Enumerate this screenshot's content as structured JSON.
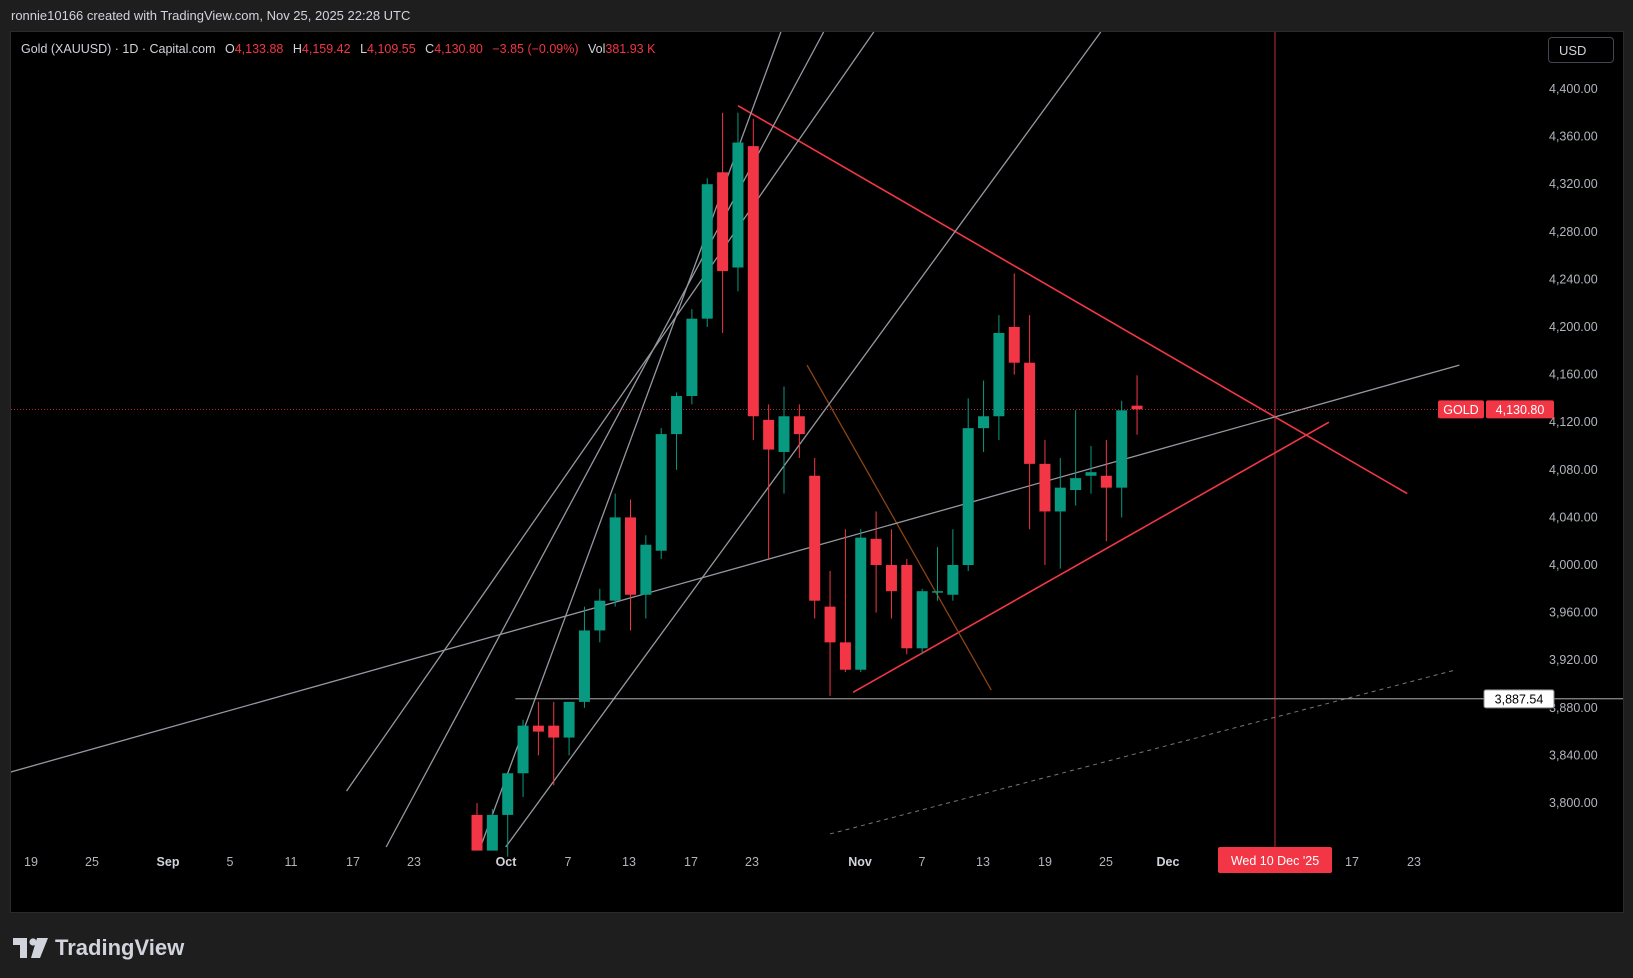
{
  "header": {
    "attribution": "ronnie10166 created with TradingView.com, Nov 25, 2025 22:28 UTC"
  },
  "legend": {
    "symbol": "Gold (XAUUSD) · 1D · Capital.com",
    "open_label": "O",
    "open": "4,133.88",
    "high_label": "H",
    "high": "4,159.42",
    "low_label": "L",
    "low": "4,109.55",
    "close_label": "C",
    "close": "4,130.80",
    "change": "−3.85 (−0.09%)",
    "vol_label": "Vol",
    "vol": "381.93 K"
  },
  "currency_button": "USD",
  "footer": {
    "brand": "TradingView"
  },
  "colors": {
    "up": "#089981",
    "down": "#f23645",
    "gray_line": "#9598a1",
    "red_line": "#f23645"
  },
  "chart_data": {
    "type": "candlestick",
    "y_ticks": [
      "4,400.00",
      "4,360.00",
      "4,320.00",
      "4,280.00",
      "4,240.00",
      "4,200.00",
      "4,160.00",
      "4,120.00",
      "4,080.00",
      "4,040.00",
      "4,000.00",
      "3,960.00",
      "3,920.00",
      "3,880.00",
      "3,840.00",
      "3,800.00"
    ],
    "x_ticks": [
      "19",
      "25",
      "Sep",
      "5",
      "11",
      "17",
      "23",
      "Oct",
      "7",
      "13",
      "17",
      "23",
      "Nov",
      "7",
      "13",
      "19",
      "25",
      "Dec",
      "17",
      "23"
    ],
    "x_bold": [
      "Sep",
      "Oct",
      "Nov",
      "Dec"
    ],
    "current_price_symbol": "GOLD",
    "current_price": "4,130.80",
    "horizontal_level": "3,887.54",
    "crosshair_date": "Wed 10 Dec '25",
    "candles": [
      {
        "o": 3790,
        "h": 3800,
        "l": 3760,
        "c": 3760
      },
      {
        "o": 3760,
        "h": 3795,
        "l": 3760,
        "c": 3790
      },
      {
        "o": 3790,
        "h": 3825,
        "l": 3755,
        "c": 3825
      },
      {
        "o": 3825,
        "h": 3870,
        "l": 3805,
        "c": 3865
      },
      {
        "o": 3865,
        "h": 3885,
        "l": 3840,
        "c": 3860
      },
      {
        "o": 3865,
        "h": 3885,
        "l": 3815,
        "c": 3855
      },
      {
        "o": 3855,
        "h": 3880,
        "l": 3840,
        "c": 3885
      },
      {
        "o": 3885,
        "h": 3965,
        "l": 3880,
        "c": 3945
      },
      {
        "o": 3945,
        "h": 3980,
        "l": 3935,
        "c": 3970
      },
      {
        "o": 3970,
        "h": 4060,
        "l": 3965,
        "c": 4040
      },
      {
        "o": 4040,
        "h": 4055,
        "l": 3945,
        "c": 3975
      },
      {
        "o": 3975,
        "h": 4025,
        "l": 3955,
        "c": 4017
      },
      {
        "o": 4012,
        "h": 4115,
        "l": 4005,
        "c": 4110
      },
      {
        "o": 4110,
        "h": 4145,
        "l": 4080,
        "c": 4142
      },
      {
        "o": 4142,
        "h": 4215,
        "l": 4135,
        "c": 4207
      },
      {
        "o": 4207,
        "h": 4325,
        "l": 4200,
        "c": 4320
      },
      {
        "o": 4330,
        "h": 4380,
        "l": 4195,
        "c": 4247
      },
      {
        "o": 4250,
        "h": 4380,
        "l": 4230,
        "c": 4355
      },
      {
        "o": 4352,
        "h": 4375,
        "l": 4105,
        "c": 4125
      },
      {
        "o": 4122,
        "h": 4135,
        "l": 4005,
        "c": 4097
      },
      {
        "o": 4095,
        "h": 4150,
        "l": 4060,
        "c": 4125
      },
      {
        "o": 4125,
        "h": 4135,
        "l": 4090,
        "c": 4110
      },
      {
        "o": 4075,
        "h": 4090,
        "l": 3955,
        "c": 3970
      },
      {
        "o": 3965,
        "h": 3995,
        "l": 3890,
        "c": 3935
      },
      {
        "o": 3935,
        "h": 4030,
        "l": 3910,
        "c": 3912
      },
      {
        "o": 3912,
        "h": 4030,
        "l": 3910,
        "c": 4023
      },
      {
        "o": 4022,
        "h": 4045,
        "l": 3960,
        "c": 4000
      },
      {
        "o": 4000,
        "h": 4030,
        "l": 3955,
        "c": 3978
      },
      {
        "o": 4000,
        "h": 4005,
        "l": 3925,
        "c": 3930
      },
      {
        "o": 3930,
        "h": 3980,
        "l": 3925,
        "c": 3978
      },
      {
        "o": 3978,
        "h": 4015,
        "l": 3970,
        "c": 3978
      },
      {
        "o": 3975,
        "h": 4030,
        "l": 3970,
        "c": 4000
      },
      {
        "o": 4000,
        "h": 4140,
        "l": 3995,
        "c": 4115
      },
      {
        "o": 4115,
        "h": 4155,
        "l": 4095,
        "c": 4125
      },
      {
        "o": 4125,
        "h": 4210,
        "l": 4105,
        "c": 4195
      },
      {
        "o": 4200,
        "h": 4245,
        "l": 4160,
        "c": 4170
      },
      {
        "o": 4170,
        "h": 4210,
        "l": 4030,
        "c": 4085
      },
      {
        "o": 4085,
        "h": 4105,
        "l": 4000,
        "c": 4045
      },
      {
        "o": 4045,
        "h": 4090,
        "l": 3997,
        "c": 4065
      },
      {
        "o": 4063,
        "h": 4130,
        "l": 4050,
        "c": 4073
      },
      {
        "o": 4075,
        "h": 4100,
        "l": 4060,
        "c": 4078
      },
      {
        "o": 4075,
        "h": 4105,
        "l": 4020,
        "c": 4065
      },
      {
        "o": 4065,
        "h": 4138,
        "l": 4040,
        "c": 4130
      },
      {
        "o": 4133.88,
        "h": 4159.42,
        "l": 4109.55,
        "c": 4130.8
      }
    ],
    "trendlines": [
      {
        "color": "red",
        "style": "solid",
        "from": {
          "i": 17.0,
          "p": 4386
        },
        "to": {
          "i": 60.6,
          "p": 4060
        }
      },
      {
        "color": "red",
        "style": "solid",
        "from": {
          "i": 24.5,
          "p": 3893
        },
        "to": {
          "i": 55.5,
          "p": 4120
        }
      },
      {
        "color": "brown",
        "style": "solid",
        "from": {
          "i": 21.5,
          "p": 4168
        },
        "to": {
          "i": 33.5,
          "p": 3895
        }
      },
      {
        "color": "gray",
        "style": "solid",
        "from": {
          "i": -31.5,
          "p": 3822
        },
        "to": {
          "i": 64.0,
          "p": 4168
        }
      },
      {
        "color": "gray",
        "style": "solid",
        "from": {
          "i": 0.0,
          "p": 3755
        },
        "to": {
          "i": 22.0,
          "p": 4525
        }
      },
      {
        "color": "gray",
        "style": "solid",
        "from": {
          "i": -7.5,
          "p": 3725
        },
        "to": {
          "i": 26.0,
          "p": 4530
        }
      },
      {
        "color": "gray",
        "style": "solid",
        "from": {
          "i": -8.5,
          "p": 3810
        },
        "to": {
          "i": 30.0,
          "p": 4525
        }
      },
      {
        "color": "gray",
        "style": "solid",
        "from": {
          "i": 0.0,
          "p": 3730
        },
        "to": {
          "i": 45.0,
          "p": 4525
        }
      },
      {
        "color": "gray",
        "style": "dashed",
        "from": {
          "i": 23.0,
          "p": 3774
        },
        "to": {
          "i": 63.8,
          "p": 3912
        }
      },
      {
        "color": "white",
        "style": "solid",
        "from": {
          "i": 2.5,
          "p": 3887.54
        },
        "to": {
          "i": 77.0,
          "p": 3887.54
        }
      }
    ]
  }
}
